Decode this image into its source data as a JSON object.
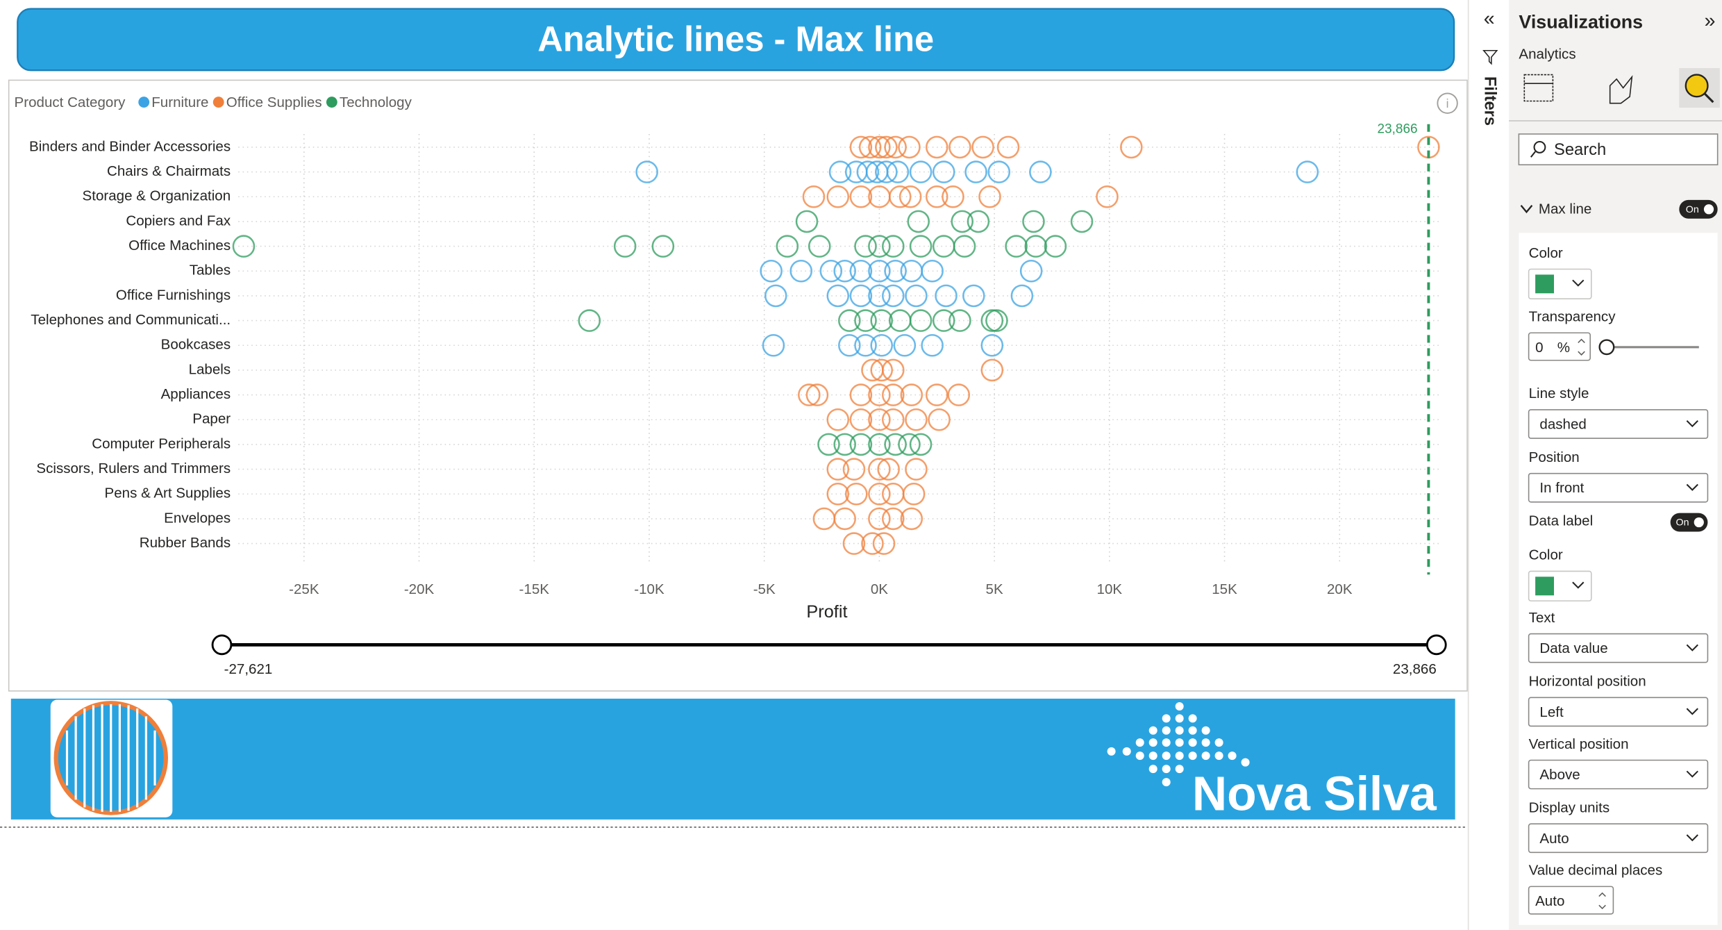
{
  "chart_data": {
    "type": "scatter",
    "title": "Analytic lines - Max line",
    "legend_title": "Product Category",
    "x_label": "Profit",
    "categories": [
      "Binders and Binder Accessories",
      "Chairs & Chairmats",
      "Storage & Organization",
      "Copiers and Fax",
      "Office Machines",
      "Tables",
      "Office Furnishings",
      "Telephones and Communicati...",
      "Bookcases",
      "Labels",
      "Appliances",
      "Paper",
      "Computer Peripherals",
      "Scissors, Rulers and Trimmers",
      "Pens & Art Supplies",
      "Envelopes",
      "Rubber Bands"
    ],
    "series": [
      {
        "name": "Furniture",
        "color": "#3ba3e3",
        "values": [
          null,
          [
            -10100,
            -1700,
            -1000,
            -500,
            -100,
            300,
            800,
            1800,
            2800,
            4200,
            5200,
            7000,
            18600
          ],
          null,
          null,
          null,
          [
            -4700,
            -3400,
            -2100,
            -1500,
            -800,
            0,
            700,
            1400,
            2300,
            6600
          ],
          [
            -4500,
            -1800,
            -800,
            0,
            600,
            1600,
            2900,
            4100,
            6200
          ],
          null,
          [
            -4600,
            -1300,
            -600,
            100,
            1100,
            2300,
            4900
          ],
          null,
          null,
          null,
          null,
          null,
          null,
          null,
          null
        ]
      },
      {
        "name": "Office Supplies",
        "color": "#f07f3a",
        "values": [
          [
            -800,
            -400,
            0,
            300,
            700,
            1300,
            2500,
            3500,
            4500,
            5600,
            10950,
            23866
          ],
          null,
          [
            -2850,
            -1800,
            -800,
            0,
            900,
            1350,
            2500,
            3200,
            4800,
            9900
          ],
          null,
          null,
          null,
          null,
          null,
          null,
          [
            -300,
            100,
            600,
            4900
          ],
          [
            -3050,
            -2700,
            -800,
            0,
            600,
            1400,
            2500,
            3450
          ],
          [
            -1800,
            -800,
            0,
            600,
            1600,
            2600
          ],
          null,
          [
            -1800,
            -1100,
            0,
            400,
            1600
          ],
          [
            -1800,
            -1000,
            0,
            600,
            1500
          ],
          [
            -2400,
            -1500,
            0,
            600,
            1400
          ],
          [
            -1100,
            -300,
            200
          ]
        ]
      },
      {
        "name": "Technology",
        "color": "#2e9c5e",
        "values": [
          null,
          null,
          null,
          [
            -3150,
            1700,
            3600,
            4300,
            6700,
            8800
          ],
          [
            -27621,
            -11050,
            -9400,
            -4000,
            -2600,
            -600,
            0,
            600,
            1800,
            2800,
            3700,
            5950,
            6800,
            7650
          ],
          null,
          null,
          [
            -12600,
            -1300,
            -600,
            100,
            900,
            1800,
            2800,
            3500,
            4900,
            5100
          ],
          null,
          null,
          null,
          null,
          [
            -2200,
            -1500,
            -800,
            0,
            700,
            1300,
            1800
          ],
          null,
          null,
          null,
          null
        ]
      }
    ],
    "xlim": [
      -27950,
      24400
    ],
    "xticks": [
      {
        "value": -25000,
        "label": "-25K"
      },
      {
        "value": -20000,
        "label": "-20K"
      },
      {
        "value": -15000,
        "label": "-15K"
      },
      {
        "value": -10000,
        "label": "-10K"
      },
      {
        "value": -5000,
        "label": "-5K"
      },
      {
        "value": 0,
        "label": "0K"
      },
      {
        "value": 5000,
        "label": "5K"
      },
      {
        "value": 10000,
        "label": "10K"
      },
      {
        "value": 15000,
        "label": "15K"
      },
      {
        "value": 20000,
        "label": "20K"
      }
    ],
    "grid": true,
    "max_line": {
      "value": 23866,
      "value_label": "23,866",
      "color": "#2e9c5e",
      "style": "dashed"
    },
    "slider": {
      "min": -27621,
      "max": 23866,
      "min_label": "-27,621",
      "max_label": "23,866"
    }
  },
  "ui": {
    "filters": "Filters",
    "panel_title": "Visualizations",
    "pane": "Analytics",
    "search": "Search",
    "section": "Max line",
    "section_toggle": "On",
    "fields": [
      {
        "label": "Color",
        "kind": "color",
        "color": "#2e9c5e"
      },
      {
        "label": "Transparency",
        "kind": "percent",
        "value": 0,
        "unit": "%"
      },
      {
        "label": "Line style",
        "kind": "dropdown",
        "value": "dashed"
      },
      {
        "label": "Position",
        "kind": "dropdown",
        "value": "In front"
      },
      {
        "label": "Data label",
        "kind": "toggle",
        "value": "On"
      },
      {
        "label": "Color",
        "kind": "color",
        "color": "#2e9c5e"
      },
      {
        "label": "Text",
        "kind": "dropdown",
        "value": "Data value"
      },
      {
        "label": "Horizontal position",
        "kind": "dropdown",
        "value": "Left"
      },
      {
        "label": "Vertical position",
        "kind": "dropdown",
        "value": "Above"
      },
      {
        "label": "Display units",
        "kind": "dropdown",
        "value": "Auto"
      },
      {
        "label": "Value decimal places",
        "kind": "spinner",
        "value": "Auto"
      }
    ],
    "brand": "Nova Silva"
  }
}
